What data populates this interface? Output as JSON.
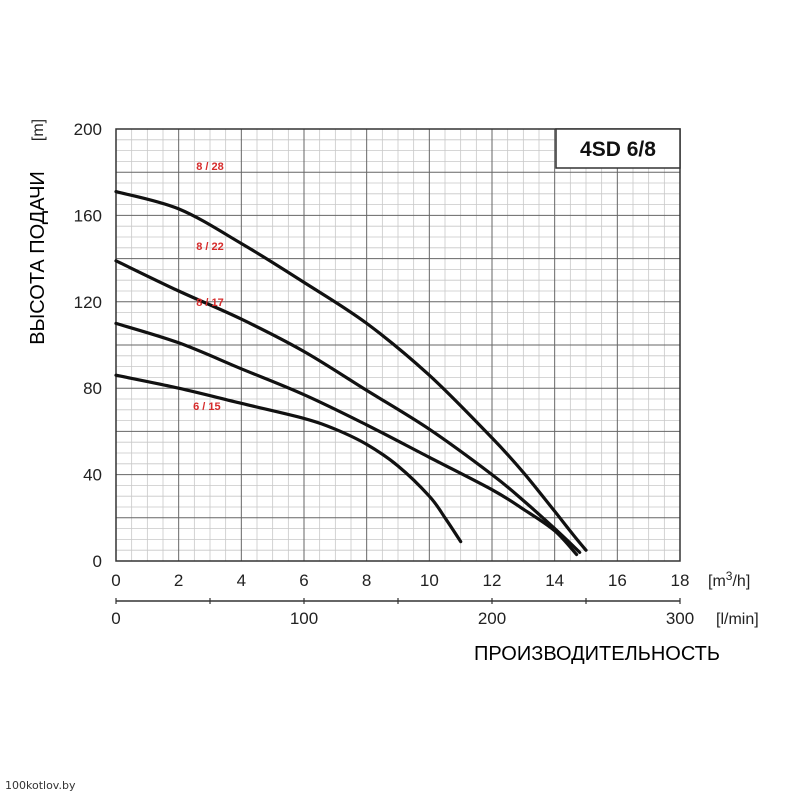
{
  "chart_data": {
    "type": "line",
    "title": "4SD 6/8",
    "ylabel": "ВЫСОТА ПОДАЧИ",
    "ylabel_unit": "[m]",
    "xlabel": "ПРОИЗВОДИТЕЛЬНОСТЬ",
    "xlim": [
      0,
      18
    ],
    "ylim": [
      0,
      200
    ],
    "x_ticks": [
      "0",
      "2",
      "4",
      "6",
      "8",
      "10",
      "12",
      "14",
      "16",
      "18"
    ],
    "x_unit_base": "[m",
    "x_unit_sup": "3",
    "x_unit_tail": "/h]",
    "y_ticks": [
      "0",
      "40",
      "80",
      "120",
      "160",
      "200"
    ],
    "x2_lim": [
      0,
      300
    ],
    "x2_ticks": [
      "0",
      "100",
      "200",
      "300"
    ],
    "x2_unit": "[l/min]",
    "grid": true,
    "label_color": "#d62b2b",
    "line_color": "#111111",
    "series": [
      {
        "name": "8 / 28",
        "x": [
          0,
          2,
          4,
          6,
          8,
          10,
          12,
          13,
          14,
          14.6,
          15.0
        ],
        "y": [
          171,
          163,
          147,
          129,
          110,
          86,
          57,
          41,
          23,
          12,
          5
        ]
      },
      {
        "name": "8 / 22",
        "x": [
          0,
          2,
          4,
          6,
          8,
          10,
          12,
          13,
          14,
          14.8
        ],
        "y": [
          139,
          125,
          112,
          97,
          79,
          61,
          40,
          28,
          15,
          4
        ]
      },
      {
        "name": "8 / 17",
        "x": [
          0,
          2,
          4,
          6,
          8,
          10,
          12,
          13,
          14,
          14.7
        ],
        "y": [
          110,
          101,
          89,
          77,
          63,
          48,
          33,
          24,
          14,
          3
        ]
      },
      {
        "name": "6 / 15",
        "x": [
          0,
          2,
          4,
          6,
          7,
          8,
          9,
          10,
          10.5,
          11.0
        ],
        "y": [
          86,
          80,
          73,
          66,
          61,
          54,
          44,
          30,
          20,
          9
        ]
      }
    ]
  },
  "watermark": "100kotlov.by"
}
